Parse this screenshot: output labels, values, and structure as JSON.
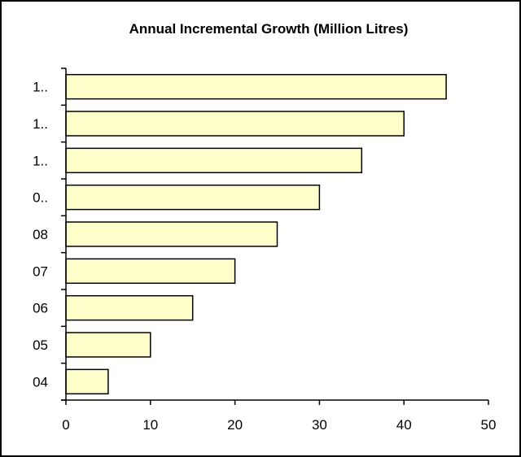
{
  "chart_data": {
    "type": "bar",
    "orientation": "horizontal",
    "title": "Annual Incremental Growth (Million Litres)",
    "xlabel": "",
    "ylabel": "",
    "categories": [
      "04",
      "05",
      "06",
      "07",
      "08",
      "0..",
      "1..",
      "1..",
      "1.."
    ],
    "values": [
      5,
      10,
      15,
      20,
      25,
      30,
      35,
      40,
      45
    ],
    "xlim": [
      0,
      50
    ],
    "xticks": [
      "0",
      "10",
      "20",
      "30",
      "40",
      "50"
    ],
    "grid": false,
    "legend": "none",
    "colors": {
      "bar_fill": "#FFFFCC",
      "bar_stroke": "#000000",
      "axis": "#000000",
      "frame": "#000000"
    }
  }
}
